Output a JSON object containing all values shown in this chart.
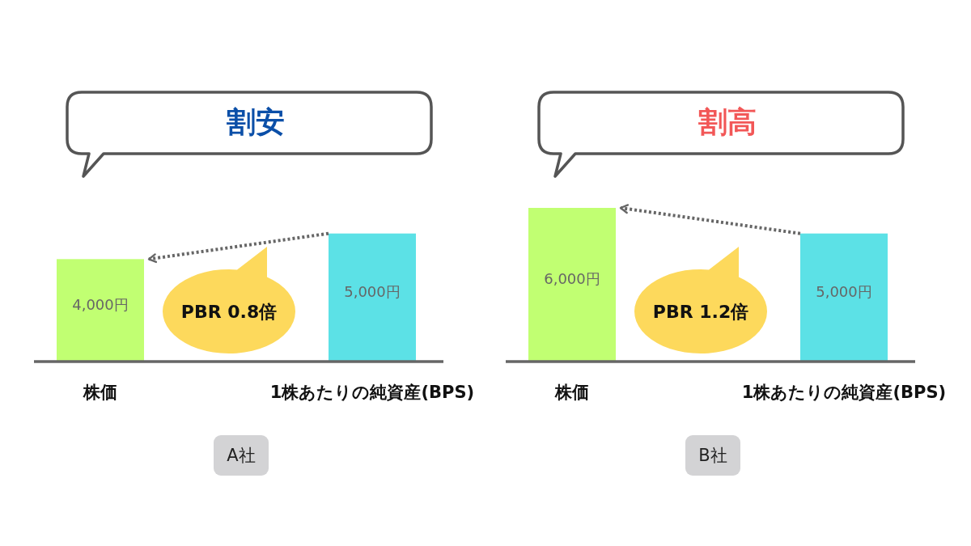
{
  "chart_data": [
    {
      "type": "bar",
      "title": "割安",
      "categories": [
        "株価",
        "1株あたりの純資産(BPS)"
      ],
      "values": [
        4000,
        5000
      ],
      "colors": [
        "#c1ff72",
        "#5ce1e6"
      ],
      "value_labels": [
        "4,000円",
        "5,000円"
      ],
      "annotations": [
        "PBR 0.8倍",
        "A社"
      ]
    },
    {
      "type": "bar",
      "title": "割高",
      "categories": [
        "株価",
        "1株あたりの純資産(BPS)"
      ],
      "values": [
        6000,
        5000
      ],
      "colors": [
        "#c1ff72",
        "#5ce1e6"
      ],
      "value_labels": [
        "6,000円",
        "5,000円"
      ],
      "annotations": [
        "PBR 1.2倍",
        "B社"
      ]
    }
  ]
}
